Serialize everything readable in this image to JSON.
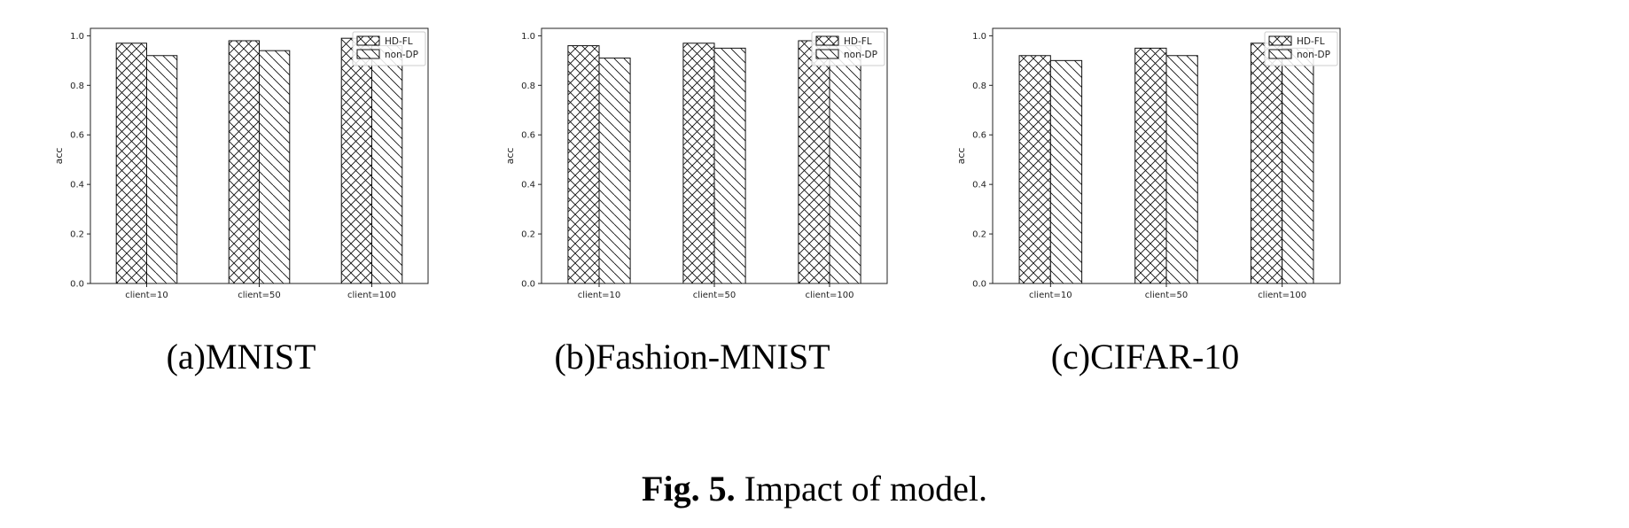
{
  "caption": {
    "prefix": "Fig. 5.",
    "text": " Impact of model."
  },
  "chart_data": [
    {
      "type": "bar",
      "subtitle": "(a)MNIST",
      "categories": [
        "client=10",
        "client=50",
        "client=100"
      ],
      "series": [
        {
          "name": "HD-FL",
          "values": [
            0.97,
            0.98,
            0.99
          ]
        },
        {
          "name": "non-DP",
          "values": [
            0.92,
            0.94,
            0.96
          ]
        }
      ],
      "ylabel": "acc",
      "ylim": [
        0,
        1.03
      ],
      "yticks": [
        "0.0",
        "0.2",
        "0.4",
        "0.6",
        "0.8",
        "1.0"
      ],
      "grid": false,
      "legend": "top-right"
    },
    {
      "type": "bar",
      "subtitle": "(b)Fashion-MNIST",
      "categories": [
        "client=10",
        "client=50",
        "client=100"
      ],
      "series": [
        {
          "name": "HD-FL",
          "values": [
            0.96,
            0.97,
            0.98
          ]
        },
        {
          "name": "non-DP",
          "values": [
            0.91,
            0.95,
            0.96
          ]
        }
      ],
      "ylabel": "acc",
      "ylim": [
        0,
        1.03
      ],
      "yticks": [
        "0.0",
        "0.2",
        "0.4",
        "0.6",
        "0.8",
        "1.0"
      ],
      "grid": false,
      "legend": "top-right"
    },
    {
      "type": "bar",
      "subtitle": "(c)CIFAR-10",
      "categories": [
        "client=10",
        "client=50",
        "client=100"
      ],
      "series": [
        {
          "name": "HD-FL",
          "values": [
            0.92,
            0.95,
            0.97
          ]
        },
        {
          "name": "non-DP",
          "values": [
            0.9,
            0.92,
            0.95
          ]
        }
      ],
      "ylabel": "acc",
      "ylim": [
        0,
        1.03
      ],
      "yticks": [
        "0.0",
        "0.2",
        "0.4",
        "0.6",
        "0.8",
        "1.0"
      ],
      "grid": false,
      "legend": "top-right"
    }
  ]
}
